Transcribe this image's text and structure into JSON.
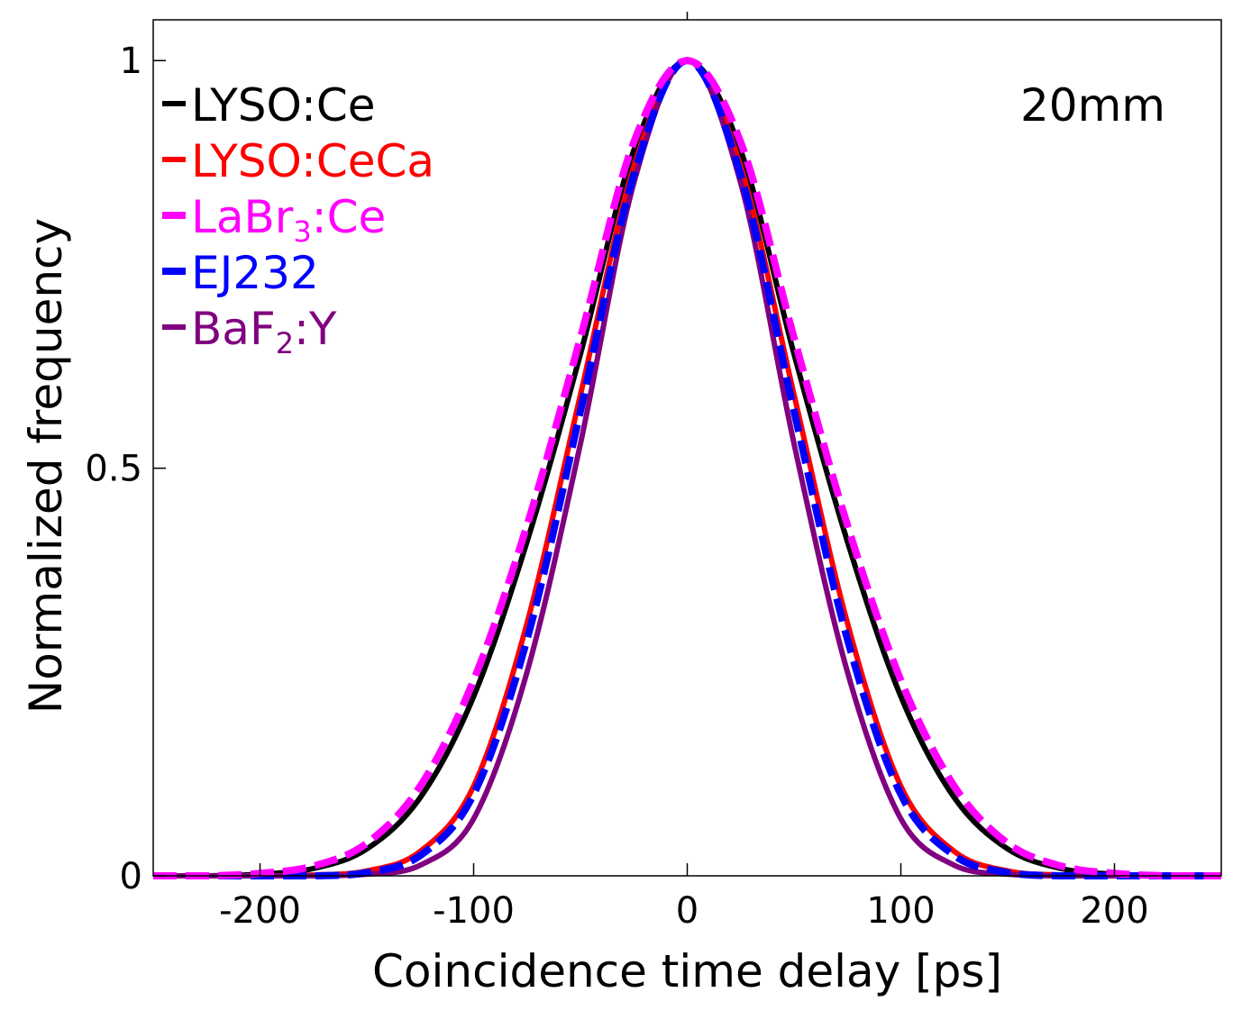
{
  "chart_data": {
    "type": "line",
    "title": "",
    "xlabel": "Coincidence time delay [ps]",
    "ylabel": "Normalized frequency",
    "xlim": [
      -250,
      250
    ],
    "ylim": [
      0,
      1.05
    ],
    "xticks": [
      -200,
      -100,
      0,
      100,
      200
    ],
    "xtick_labels": [
      "-200",
      "-100",
      "0",
      "100",
      "200"
    ],
    "yticks": [
      0,
      0.5,
      1
    ],
    "ytick_labels": [
      "0",
      "0.5",
      "1"
    ],
    "grid": false,
    "legend_position": "top-left",
    "annotation": "20mm",
    "x": [
      -250,
      -225,
      -200,
      -175,
      -150,
      -125,
      -100,
      -75,
      -50,
      -25,
      0,
      25,
      50,
      75,
      100,
      125,
      150,
      175,
      200,
      225,
      250
    ],
    "series": [
      {
        "name": "LYSO:Ce",
        "name_parts": [
          {
            "text": "LYSO:Ce",
            "sub": false
          }
        ],
        "color": "#000000",
        "style": "solid",
        "values": [
          0.0,
          0.0,
          0.002,
          0.009,
          0.033,
          0.096,
          0.22,
          0.41,
          0.64,
          0.89,
          1.0,
          0.89,
          0.64,
          0.41,
          0.22,
          0.096,
          0.033,
          0.009,
          0.002,
          0.0,
          0.0
        ]
      },
      {
        "name": "LYSO:CeCa",
        "name_parts": [
          {
            "text": "LYSO:CeCa",
            "sub": false
          }
        ],
        "color": "#ff0000",
        "style": "solid",
        "values": [
          0.0,
          0.0,
          0.0,
          0.001,
          0.006,
          0.03,
          0.11,
          0.31,
          0.59,
          0.87,
          1.0,
          0.87,
          0.59,
          0.31,
          0.11,
          0.03,
          0.006,
          0.001,
          0.0,
          0.0,
          0.0
        ]
      },
      {
        "name": "LaBr3:Ce",
        "name_parts": [
          {
            "text": "LaBr",
            "sub": false
          },
          {
            "text": "3",
            "sub": true
          },
          {
            "text": ":Ce",
            "sub": false
          }
        ],
        "color": "#ff00ff",
        "style": "dashed",
        "values": [
          0.0,
          0.0,
          0.003,
          0.012,
          0.04,
          0.11,
          0.24,
          0.43,
          0.66,
          0.9,
          1.0,
          0.9,
          0.66,
          0.43,
          0.24,
          0.11,
          0.04,
          0.012,
          0.003,
          0.0,
          0.0
        ]
      },
      {
        "name": "EJ232",
        "name_parts": [
          {
            "text": "EJ232",
            "sub": false
          }
        ],
        "color": "#0000ff",
        "style": "dashed",
        "values": [
          0.0,
          0.0,
          0.0,
          0.0,
          0.004,
          0.025,
          0.1,
          0.29,
          0.57,
          0.86,
          1.0,
          0.86,
          0.57,
          0.29,
          0.1,
          0.025,
          0.004,
          0.0,
          0.0,
          0.0,
          0.0
        ]
      },
      {
        "name": "BaF2:Y",
        "name_parts": [
          {
            "text": "BaF",
            "sub": false
          },
          {
            "text": "2",
            "sub": true
          },
          {
            "text": ":Y",
            "sub": false
          }
        ],
        "color": "#800080",
        "style": "solid",
        "values": [
          0.0,
          0.0,
          0.0,
          0.0,
          0.002,
          0.013,
          0.07,
          0.25,
          0.53,
          0.85,
          1.0,
          0.85,
          0.53,
          0.25,
          0.07,
          0.013,
          0.002,
          0.0,
          0.0,
          0.0,
          0.0
        ]
      }
    ]
  }
}
